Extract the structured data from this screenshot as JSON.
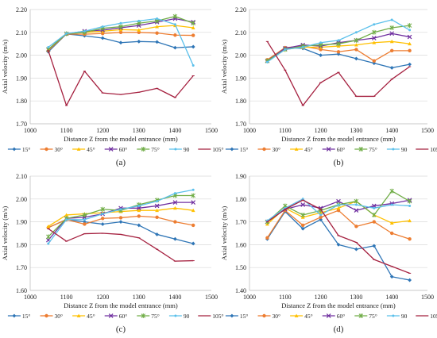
{
  "chart_data": [
    {
      "type": "line",
      "panel_label": "(a)",
      "xlabel": "Distance Z from the model entrance (mm)",
      "ylabel": "Axial velocity  (m/s)",
      "xlim": [
        1000,
        1500
      ],
      "ylim": [
        1.7,
        2.2
      ],
      "xticks": [
        1000,
        1100,
        1200,
        1300,
        1400,
        1500
      ],
      "yticks": [
        1.7,
        1.8,
        1.9,
        2.0,
        2.1,
        2.2
      ],
      "ytick_labels": [
        "1.70",
        "1.80",
        "1.90",
        "2.00",
        "2.10",
        "2.20"
      ],
      "grid": "horizontal",
      "legend_position": "bottom",
      "x": [
        1050,
        1100,
        1150,
        1200,
        1250,
        1300,
        1350,
        1400,
        1450
      ],
      "series": [
        {
          "name": "15°",
          "color": "#2E75B6",
          "marker": "diamond",
          "values": [
            2.015,
            2.093,
            2.085,
            2.075,
            2.055,
            2.06,
            2.058,
            2.033,
            2.037
          ]
        },
        {
          "name": "30°",
          "color": "#ED7D31",
          "marker": "circle",
          "values": [
            2.02,
            2.093,
            2.092,
            2.095,
            2.1,
            2.1,
            2.097,
            2.088,
            2.087
          ]
        },
        {
          "name": "45°",
          "color": "#FFC000",
          "marker": "triangle",
          "values": [
            2.025,
            2.095,
            2.1,
            2.105,
            2.112,
            2.11,
            2.125,
            2.13,
            2.12
          ]
        },
        {
          "name": "60°",
          "color": "#7030A0",
          "marker": "x",
          "values": [
            2.025,
            2.094,
            2.105,
            2.11,
            2.12,
            2.13,
            2.145,
            2.16,
            2.145
          ]
        },
        {
          "name": "75°",
          "color": "#70AD47",
          "marker": "star",
          "values": [
            2.025,
            2.094,
            2.1,
            2.118,
            2.125,
            2.14,
            2.15,
            2.17,
            2.14
          ]
        },
        {
          "name": "90",
          "color": "#5BC0EB",
          "marker": "dot",
          "values": [
            2.035,
            2.095,
            2.105,
            2.125,
            2.14,
            2.15,
            2.16,
            2.135,
            1.955
          ]
        },
        {
          "name": "105°",
          "color": "#A5203F",
          "marker": "plus",
          "values": [
            2.02,
            1.78,
            1.93,
            1.835,
            1.828,
            1.838,
            1.855,
            1.815,
            1.91
          ]
        }
      ]
    },
    {
      "type": "line",
      "panel_label": "(b)",
      "xlabel": "Distance Z from the model entrance (mm)",
      "ylabel": "Axial velocity  (m/s)",
      "xlim": [
        1000,
        1500
      ],
      "ylim": [
        1.7,
        2.2
      ],
      "xticks": [
        1000,
        1100,
        1200,
        1300,
        1400,
        1500
      ],
      "yticks": [
        1.7,
        1.8,
        1.9,
        2.0,
        2.1,
        2.2
      ],
      "ytick_labels": [
        "1.70",
        "1.80",
        "1.90",
        "2.00",
        "2.10",
        "2.20"
      ],
      "grid": "horizontal",
      "legend_position": "bottom",
      "x": [
        1050,
        1100,
        1150,
        1200,
        1250,
        1300,
        1350,
        1400,
        1450
      ],
      "series": [
        {
          "name": "15°",
          "color": "#2E75B6",
          "marker": "diamond",
          "values": [
            1.975,
            2.033,
            2.03,
            2.0,
            2.005,
            1.985,
            1.965,
            1.945,
            1.96
          ]
        },
        {
          "name": "30°",
          "color": "#ED7D31",
          "marker": "circle",
          "values": [
            1.98,
            2.033,
            2.04,
            2.025,
            2.015,
            2.025,
            1.975,
            2.02,
            2.02
          ]
        },
        {
          "name": "45°",
          "color": "#FFC000",
          "marker": "triangle",
          "values": [
            1.975,
            2.025,
            2.035,
            2.035,
            2.04,
            2.045,
            2.055,
            2.06,
            2.05
          ]
        },
        {
          "name": "60°",
          "color": "#7030A0",
          "marker": "x",
          "values": [
            1.975,
            2.03,
            2.045,
            2.04,
            2.055,
            2.065,
            2.075,
            2.095,
            2.08
          ]
        },
        {
          "name": "75°",
          "color": "#70AD47",
          "marker": "star",
          "values": [
            1.975,
            2.025,
            2.04,
            2.045,
            2.05,
            2.065,
            2.1,
            2.12,
            2.13
          ]
        },
        {
          "name": "90",
          "color": "#5BC0EB",
          "marker": "dot",
          "values": [
            1.97,
            2.025,
            2.035,
            2.055,
            2.065,
            2.1,
            2.135,
            2.155,
            2.11
          ]
        },
        {
          "name": "105°",
          "color": "#A5203F",
          "marker": "plus",
          "values": [
            2.06,
            1.935,
            1.78,
            1.88,
            1.925,
            1.82,
            1.82,
            1.895,
            1.95
          ]
        }
      ]
    },
    {
      "type": "line",
      "panel_label": "(c)",
      "xlabel": "Distance Z from the model entrance (mm)",
      "ylabel": "Axial velocity  (m/s)",
      "xlim": [
        1000,
        1500
      ],
      "ylim": [
        1.6,
        2.1
      ],
      "xticks": [
        1000,
        1100,
        1200,
        1300,
        1400,
        1500
      ],
      "yticks": [
        1.6,
        1.7,
        1.8,
        1.9,
        2.0,
        2.1
      ],
      "ytick_labels": [
        "1.60",
        "1.70",
        "1.80",
        "1.90",
        "2.00",
        "2.10"
      ],
      "grid": "horizontal",
      "legend_position": "bottom",
      "x": [
        1050,
        1100,
        1150,
        1200,
        1250,
        1300,
        1350,
        1400,
        1450
      ],
      "series": [
        {
          "name": "15°",
          "color": "#2E75B6",
          "marker": "diamond",
          "values": [
            1.875,
            1.91,
            1.9,
            1.89,
            1.9,
            1.885,
            1.845,
            1.825,
            1.805
          ]
        },
        {
          "name": "30°",
          "color": "#ED7D31",
          "marker": "circle",
          "values": [
            1.875,
            1.91,
            1.89,
            1.915,
            1.918,
            1.925,
            1.92,
            1.9,
            1.885
          ]
        },
        {
          "name": "45°",
          "color": "#FFC000",
          "marker": "triangle",
          "values": [
            1.88,
            1.93,
            1.935,
            1.94,
            1.945,
            1.95,
            1.95,
            1.96,
            1.95
          ]
        },
        {
          "name": "60°",
          "color": "#7030A0",
          "marker": "x",
          "values": [
            1.82,
            1.915,
            1.92,
            1.935,
            1.96,
            1.96,
            1.97,
            1.985,
            1.985
          ]
        },
        {
          "name": "75°",
          "color": "#70AD47",
          "marker": "star",
          "values": [
            1.835,
            1.915,
            1.93,
            1.955,
            1.95,
            1.975,
            1.995,
            2.015,
            2.015
          ]
        },
        {
          "name": "90",
          "color": "#5BC0EB",
          "marker": "dot",
          "values": [
            1.805,
            1.91,
            1.91,
            1.935,
            1.955,
            1.97,
            1.99,
            2.025,
            2.04
          ]
        },
        {
          "name": "105°",
          "color": "#A5203F",
          "marker": "plus",
          "values": [
            1.87,
            1.815,
            1.848,
            1.85,
            1.845,
            1.83,
            1.78,
            1.728,
            1.73
          ]
        }
      ]
    },
    {
      "type": "line",
      "panel_label": "(d)",
      "xlabel": "Distance Z from the model entrance (mm)",
      "ylabel": "Axial velocity  (m/s)",
      "xlim": [
        1000,
        1500
      ],
      "ylim": [
        1.4,
        1.9
      ],
      "xticks": [
        1000,
        1100,
        1200,
        1300,
        1400,
        1500
      ],
      "yticks": [
        1.4,
        1.5,
        1.6,
        1.7,
        1.8,
        1.9
      ],
      "ytick_labels": [
        "1.40",
        "1.50",
        "1.60",
        "1.70",
        "1.80",
        "1.90"
      ],
      "grid": "horizontal",
      "legend_position": "bottom",
      "x": [
        1050,
        1100,
        1150,
        1200,
        1250,
        1300,
        1350,
        1400,
        1450
      ],
      "series": [
        {
          "name": "15°",
          "color": "#2E75B6",
          "marker": "diamond",
          "values": [
            1.625,
            1.745,
            1.67,
            1.71,
            1.6,
            1.58,
            1.595,
            1.46,
            1.445
          ]
        },
        {
          "name": "30°",
          "color": "#ED7D31",
          "marker": "circle",
          "values": [
            1.63,
            1.75,
            1.685,
            1.72,
            1.75,
            1.68,
            1.7,
            1.65,
            1.625
          ]
        },
        {
          "name": "45°",
          "color": "#FFC000",
          "marker": "triangle",
          "values": [
            1.69,
            1.76,
            1.72,
            1.74,
            1.76,
            1.79,
            1.73,
            1.695,
            1.705
          ]
        },
        {
          "name": "60°",
          "color": "#7030A0",
          "marker": "x",
          "values": [
            1.7,
            1.755,
            1.775,
            1.76,
            1.79,
            1.75,
            1.77,
            1.78,
            1.795
          ]
        },
        {
          "name": "75°",
          "color": "#70AD47",
          "marker": "star",
          "values": [
            1.7,
            1.77,
            1.73,
            1.75,
            1.775,
            1.79,
            1.73,
            1.835,
            1.79
          ]
        },
        {
          "name": "90",
          "color": "#5BC0EB",
          "marker": "dot",
          "values": [
            1.705,
            1.76,
            1.8,
            1.73,
            1.775,
            1.775,
            1.76,
            1.775,
            1.77
          ]
        },
        {
          "name": "105°",
          "color": "#A5203F",
          "marker": "plus",
          "values": [
            1.7,
            1.755,
            1.795,
            1.755,
            1.64,
            1.61,
            1.535,
            1.505,
            1.475
          ]
        }
      ]
    }
  ]
}
